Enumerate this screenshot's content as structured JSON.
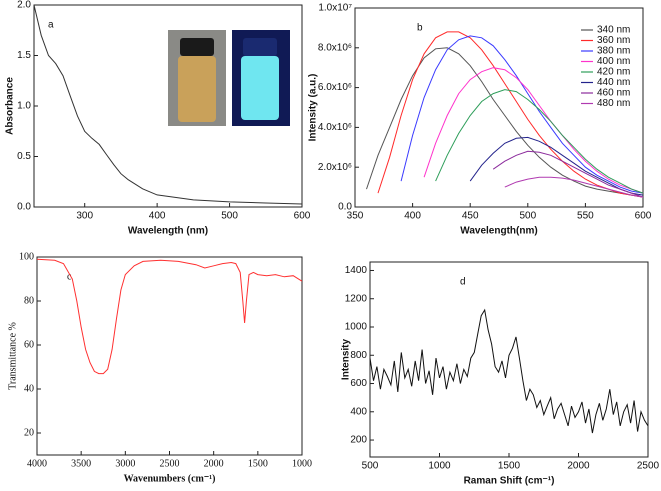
{
  "chart_data": [
    {
      "type": "line",
      "annotation": "a",
      "xlabel": "Wavelength (nm)",
      "ylabel": "Absorbance",
      "x": [
        230,
        240,
        250,
        260,
        270,
        280,
        290,
        300,
        310,
        320,
        330,
        340,
        350,
        360,
        380,
        400,
        450,
        500,
        550,
        600
      ],
      "values": [
        2.0,
        1.7,
        1.5,
        1.42,
        1.3,
        1.1,
        0.9,
        0.75,
        0.68,
        0.62,
        0.52,
        0.42,
        0.33,
        0.27,
        0.18,
        0.12,
        0.07,
        0.05,
        0.04,
        0.03
      ],
      "color": "#333333",
      "xlim": [
        230,
        600
      ],
      "xticks": [
        300,
        400,
        500,
        600
      ],
      "ylim": [
        0,
        2.0
      ],
      "yticks": [
        {
          "value": 0,
          "label": "0.0"
        },
        0.5,
        {
          "value": 1,
          "label": "1.0"
        },
        1.5,
        {
          "value": 2,
          "label": "2.0"
        }
      ]
    },
    {
      "type": "line",
      "annotation": "b",
      "xlabel": "Wavelength(nm)",
      "ylabel": "Intensity (a.u.)",
      "x": [
        350,
        360,
        370,
        380,
        390,
        400,
        410,
        420,
        430,
        440,
        450,
        460,
        470,
        480,
        490,
        500,
        510,
        520,
        530,
        540,
        550,
        560,
        570,
        580,
        590,
        600
      ],
      "series": [
        {
          "name": "340 nm",
          "color": "#555555",
          "values": [
            null,
            900000,
            2600000,
            4000000,
            5400000,
            6600000,
            7500000,
            7950000,
            8000000,
            7700000,
            7100000,
            6300000,
            5400000,
            4600000,
            3800000,
            3100000,
            2500000,
            2000000,
            1600000,
            1300000,
            1050000,
            900000,
            800000,
            700000,
            600000,
            500000
          ]
        },
        {
          "name": "360 nm",
          "color": "#ff2a2a",
          "values": [
            null,
            null,
            700000,
            2500000,
            4600000,
            6400000,
            7700000,
            8500000,
            8800000,
            8800000,
            8500000,
            7900000,
            7100000,
            6200000,
            5300000,
            4400000,
            3600000,
            2900000,
            2300000,
            1800000,
            1400000,
            1100000,
            900000,
            700000,
            600000,
            500000
          ]
        },
        {
          "name": "380 nm",
          "color": "#3a3aff",
          "values": [
            null,
            null,
            null,
            null,
            1300000,
            3600000,
            5500000,
            6900000,
            7900000,
            8400000,
            8600000,
            8500000,
            8100000,
            7400000,
            6600000,
            5700000,
            4800000,
            4000000,
            3200000,
            2600000,
            2000000,
            1600000,
            1300000,
            1000000,
            800000,
            700000
          ]
        },
        {
          "name": "400 nm",
          "color": "#ff33cc",
          "values": [
            null,
            null,
            null,
            null,
            null,
            null,
            1500000,
            3200000,
            4600000,
            5700000,
            6400000,
            6800000,
            7000000,
            6900000,
            6500000,
            5900000,
            5100000,
            4300000,
            3600000,
            2900000,
            2300000,
            1800000,
            1400000,
            1100000,
            900000,
            700000
          ]
        },
        {
          "name": "420 nm",
          "color": "#2e9e5a",
          "values": [
            null,
            null,
            null,
            null,
            null,
            null,
            null,
            1300000,
            2600000,
            3700000,
            4600000,
            5300000,
            5700000,
            5900000,
            5800000,
            5400000,
            4900000,
            4300000,
            3600000,
            3000000,
            2400000,
            1900000,
            1500000,
            1200000,
            900000,
            700000
          ]
        },
        {
          "name": "440 nm",
          "color": "#23238c",
          "values": [
            null,
            null,
            null,
            null,
            null,
            null,
            null,
            null,
            null,
            null,
            1300000,
            2100000,
            2700000,
            3200000,
            3450000,
            3500000,
            3300000,
            3000000,
            2600000,
            2200000,
            1800000,
            1500000,
            1200000,
            900000,
            700000,
            600000
          ]
        },
        {
          "name": "460 nm",
          "color": "#8b2a9c",
          "values": [
            null,
            null,
            null,
            null,
            null,
            null,
            null,
            null,
            null,
            null,
            null,
            null,
            1900000,
            2300000,
            2600000,
            2800000,
            2750000,
            2600000,
            2300000,
            2000000,
            1700000,
            1400000,
            1100000,
            900000,
            700000,
            500000
          ]
        },
        {
          "name": "480 nm",
          "color": "#b03ab0",
          "values": [
            null,
            null,
            null,
            null,
            null,
            null,
            null,
            null,
            null,
            null,
            null,
            null,
            null,
            1000000,
            1250000,
            1400000,
            1500000,
            1500000,
            1450000,
            1350000,
            1200000,
            1050000,
            900000,
            750000,
            600000,
            500000
          ]
        }
      ],
      "xlim": [
        350,
        600
      ],
      "xticks": [
        350,
        400,
        450,
        500,
        550,
        600
      ],
      "ylim": [
        0,
        10000000
      ],
      "yticks": [
        {
          "value": 0,
          "label": "0.0"
        },
        {
          "value": 2000000,
          "label": "2.0x10⁶"
        },
        {
          "value": 4000000,
          "label": "4.0x10⁶"
        },
        {
          "value": 6000000,
          "label": "6.0x10⁶"
        },
        {
          "value": 8000000,
          "label": "8.0x10⁶"
        },
        {
          "value": 10000000,
          "label": "1.0x10⁷"
        }
      ]
    },
    {
      "type": "line",
      "annotation": "c",
      "xlabel": "Wavenumbers (cm⁻¹)",
      "ylabel": "Transmittance %",
      "x": [
        4000,
        3800,
        3700,
        3600,
        3550,
        3500,
        3450,
        3400,
        3350,
        3300,
        3250,
        3200,
        3150,
        3100,
        3050,
        3000,
        2900,
        2800,
        2600,
        2400,
        2200,
        2100,
        2000,
        1900,
        1800,
        1750,
        1700,
        1670,
        1650,
        1630,
        1600,
        1550,
        1500,
        1400,
        1300,
        1200,
        1100,
        1000
      ],
      "values": [
        99,
        98.5,
        97,
        90,
        80,
        68,
        58,
        52,
        48,
        47,
        47,
        49,
        58,
        72,
        85,
        92,
        96,
        98,
        98.5,
        98,
        96.5,
        95,
        96,
        97,
        97.5,
        97,
        93,
        80,
        70,
        80,
        92,
        93,
        92,
        91.5,
        92,
        91,
        91.5,
        89
      ],
      "color": "#ff3030",
      "xlim": [
        4000,
        1000
      ],
      "xticks": [
        4000,
        3500,
        3000,
        2500,
        2000,
        1500,
        1000
      ],
      "ylim": [
        10,
        100
      ],
      "yticks": [
        20,
        40,
        60,
        80,
        100
      ]
    },
    {
      "type": "line",
      "annotation": "d",
      "xlabel": "Raman Shift (cm⁻¹)",
      "ylabel": "Intensity",
      "x": [
        500,
        525,
        550,
        575,
        600,
        625,
        650,
        675,
        700,
        725,
        750,
        775,
        800,
        825,
        850,
        875,
        900,
        925,
        950,
        975,
        1000,
        1025,
        1050,
        1075,
        1100,
        1125,
        1150,
        1175,
        1200,
        1225,
        1250,
        1275,
        1300,
        1325,
        1350,
        1375,
        1400,
        1425,
        1450,
        1475,
        1500,
        1525,
        1550,
        1575,
        1600,
        1625,
        1650,
        1675,
        1700,
        1725,
        1750,
        1775,
        1800,
        1825,
        1850,
        1875,
        1900,
        1925,
        1950,
        1975,
        2000,
        2025,
        2050,
        2075,
        2100,
        2125,
        2150,
        2175,
        2200,
        2225,
        2250,
        2275,
        2300,
        2325,
        2350,
        2375,
        2400,
        2425,
        2450,
        2475,
        2500
      ],
      "values": [
        780,
        620,
        720,
        560,
        700,
        650,
        590,
        760,
        540,
        820,
        640,
        700,
        580,
        760,
        620,
        840,
        600,
        690,
        520,
        780,
        640,
        720,
        560,
        680,
        620,
        740,
        600,
        700,
        650,
        780,
        820,
        950,
        1080,
        1120,
        980,
        880,
        720,
        680,
        760,
        640,
        800,
        850,
        930,
        780,
        620,
        480,
        560,
        520,
        430,
        480,
        380,
        440,
        500,
        350,
        420,
        460,
        380,
        300,
        440,
        360,
        400,
        470,
        320,
        420,
        250,
        380,
        460,
        340,
        420,
        560,
        380,
        470,
        300,
        400,
        450,
        320,
        480,
        260,
        400,
        340,
        300
      ],
      "color": "#111111",
      "xlim": [
        500,
        2500
      ],
      "xticks": [
        500,
        1000,
        1500,
        2000,
        2500
      ],
      "ylim": [
        80,
        1460
      ],
      "yticks": [
        200,
        400,
        600,
        800,
        1000,
        1200,
        1400
      ]
    }
  ]
}
